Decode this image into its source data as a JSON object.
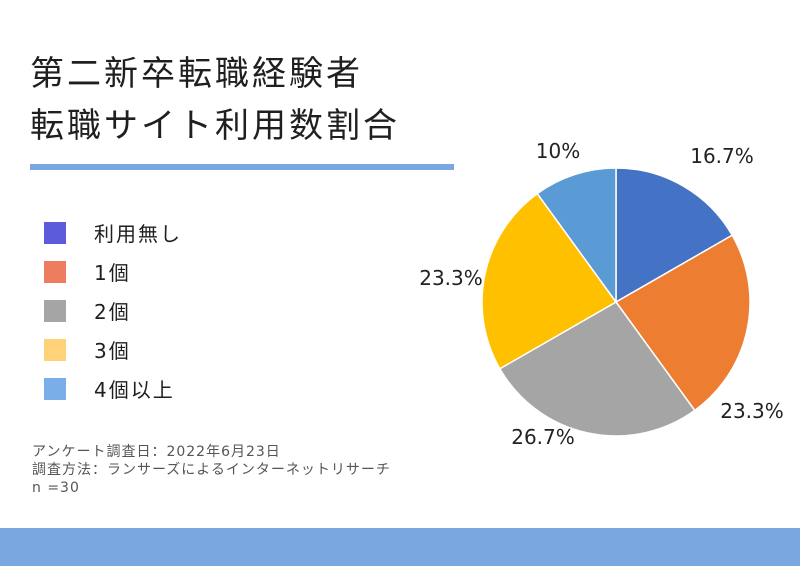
{
  "title": {
    "line1": "第二新卒転職経験者",
    "line2": "転職サイト利用数割合"
  },
  "legend": [
    {
      "label": "利用無し",
      "color": "#5b5bdc"
    },
    {
      "label": "1個",
      "color": "#ed7d5e"
    },
    {
      "label": "2個",
      "color": "#a5a5a5"
    },
    {
      "label": "3個",
      "color": "#ffd27a"
    },
    {
      "label": "4個以上",
      "color": "#7aaee8"
    }
  ],
  "notes": {
    "survey_date": "アンケート調査日：2022年6月23日",
    "method": "調査方法：ランサーズによるインターネットリサーチ",
    "n": "n =30"
  },
  "chart_data": {
    "type": "pie",
    "categories": [
      "利用無し",
      "1個",
      "2個",
      "3個",
      "4個以上"
    ],
    "values": [
      16.7,
      23.3,
      26.7,
      23.3,
      10
    ],
    "labels": [
      "16.7%",
      "23.3%",
      "26.7%",
      "23.3%",
      "10%"
    ],
    "colors": [
      "#4472c4",
      "#ed7d31",
      "#a5a5a5",
      "#ffc000",
      "#5b9bd5"
    ],
    "start": "12 o'clock",
    "direction": "clockwise"
  }
}
